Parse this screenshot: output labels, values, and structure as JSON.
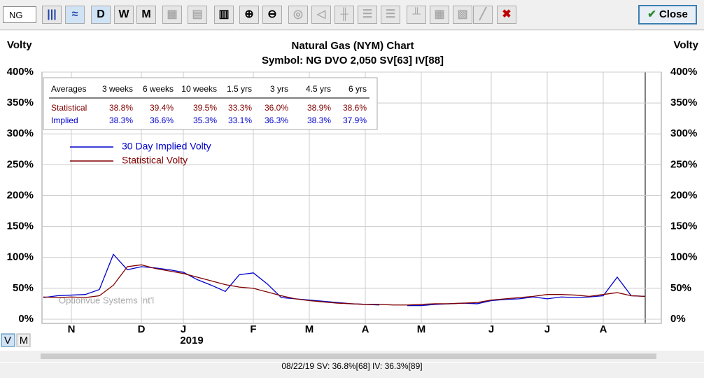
{
  "toolbar": {
    "symbol": "NG",
    "periods": [
      "D",
      "W",
      "M"
    ],
    "close": "Close"
  },
  "chart_data": {
    "type": "line",
    "title": "Natural Gas (NYM) Chart",
    "subtitle": "Symbol: NG  DVO 2,050  SV[63]  IV[88]",
    "y_label": "Volty",
    "categories": [
      null,
      null,
      "N",
      null,
      null,
      null,
      null,
      "D",
      null,
      null,
      "J",
      null,
      null,
      null,
      null,
      "F",
      null,
      null,
      null,
      "M",
      null,
      null,
      null,
      "A",
      null,
      null,
      null,
      "M",
      null,
      null,
      null,
      null,
      "J",
      null,
      null,
      null,
      "J",
      null,
      null,
      null,
      "A",
      null,
      null,
      null
    ],
    "x_year_label": "2019",
    "series": [
      {
        "name": "30 Day Implied Volty",
        "color": "#0000cc",
        "values": [
          35,
          38,
          39,
          40,
          48,
          105,
          80,
          85,
          83,
          80,
          76,
          64,
          55,
          45,
          72,
          75,
          57,
          35,
          33,
          31,
          29,
          27,
          25,
          24,
          23,
          null,
          22,
          22,
          24,
          25,
          26,
          25,
          30,
          32,
          33,
          36,
          33,
          36,
          35,
          36,
          38,
          68,
          38,
          37
        ]
      },
      {
        "name": "Statistical Volty",
        "color": "#800000",
        "values": [
          36,
          35,
          36,
          35,
          38,
          55,
          85,
          88,
          82,
          78,
          74,
          68,
          62,
          56,
          52,
          50,
          44,
          38,
          33,
          30,
          28,
          26,
          25,
          24,
          24,
          23,
          23,
          24,
          25,
          25,
          26,
          27,
          31,
          33,
          35,
          37,
          40,
          40,
          39,
          37,
          40,
          43,
          38,
          37
        ]
      }
    ],
    "ylim": [
      0,
      400
    ],
    "yticks": [
      {
        "value": 0,
        "label": "0%"
      },
      {
        "value": 50,
        "label": "50%"
      },
      {
        "value": 100,
        "label": "100%"
      },
      {
        "value": 150,
        "label": "150%"
      },
      {
        "value": 200,
        "label": "200%"
      },
      {
        "value": 250,
        "label": "250%"
      },
      {
        "value": 300,
        "label": "300%"
      },
      {
        "value": 350,
        "label": "350%"
      },
      {
        "value": 400,
        "label": "400%"
      }
    ],
    "grid": true,
    "watermark": "Optionvue Systems Int'l"
  },
  "averages_table": {
    "header": [
      "Averages",
      "3 weeks",
      "6 weeks",
      "10 weeks",
      "1.5 yrs",
      "3 yrs",
      "4.5 yrs",
      "6 yrs"
    ],
    "rows": [
      [
        "Statistical",
        "38.8%",
        "39.4%",
        "39.5%",
        "33.3%",
        "36.0%",
        "38.9%",
        "38.6%"
      ],
      [
        "Implied",
        "38.3%",
        "36.6%",
        "35.3%",
        "33.1%",
        "36.3%",
        "38.3%",
        "37.9%"
      ]
    ]
  },
  "scale_modes": [
    "V",
    "M"
  ],
  "status": "08/22/19  SV: 36.8%[68]  IV: 36.3%[89]"
}
